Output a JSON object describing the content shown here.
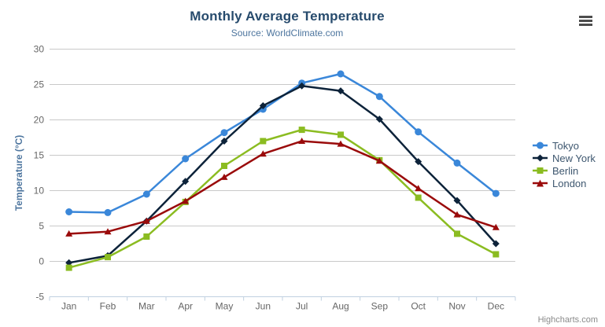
{
  "credits": "Highcharts.com",
  "toolbar": {
    "context_menu_icon": "hamburger-menu-icon"
  },
  "chart_data": {
    "type": "line",
    "title": "Monthly Average Temperature",
    "subtitle": "Source: WorldClimate.com",
    "xlabel": "",
    "ylabel": "Temperature (°C)",
    "categories": [
      "Jan",
      "Feb",
      "Mar",
      "Apr",
      "May",
      "Jun",
      "Jul",
      "Aug",
      "Sep",
      "Oct",
      "Nov",
      "Dec"
    ],
    "series": [
      {
        "name": "Tokyo",
        "color": "#3a87d9",
        "marker": "circle",
        "values": [
          7.0,
          6.9,
          9.5,
          14.5,
          18.2,
          21.5,
          25.2,
          26.5,
          23.3,
          18.3,
          13.9,
          9.6
        ]
      },
      {
        "name": "New York",
        "color": "#0d233a",
        "marker": "diamond",
        "values": [
          -0.2,
          0.8,
          5.7,
          11.3,
          17.0,
          22.0,
          24.8,
          24.1,
          20.1,
          14.1,
          8.6,
          2.5
        ]
      },
      {
        "name": "Berlin",
        "color": "#8bbc21",
        "marker": "square",
        "values": [
          -0.9,
          0.6,
          3.5,
          8.4,
          13.5,
          17.0,
          18.6,
          17.9,
          14.3,
          9.0,
          3.9,
          1.0
        ]
      },
      {
        "name": "London",
        "color": "#9a0b0b",
        "marker": "triangle",
        "values": [
          3.9,
          4.2,
          5.7,
          8.5,
          11.9,
          15.2,
          17.0,
          16.6,
          14.2,
          10.3,
          6.6,
          4.8
        ]
      }
    ],
    "ylim": [
      -5,
      30
    ],
    "y_tick_interval": 5,
    "y_ticks": [
      -5,
      0,
      5,
      10,
      15,
      20,
      25,
      30
    ],
    "grid": "horizontal",
    "legend_position": "right",
    "colors": {
      "grid_line": "#c9c9c9",
      "axis_line": "#c0d0e0",
      "tick_label": "#666666",
      "axis_title": "#4d759e",
      "title": "#274b6d",
      "subtitle": "#4d759e",
      "legend_text": "#3e576f"
    }
  }
}
